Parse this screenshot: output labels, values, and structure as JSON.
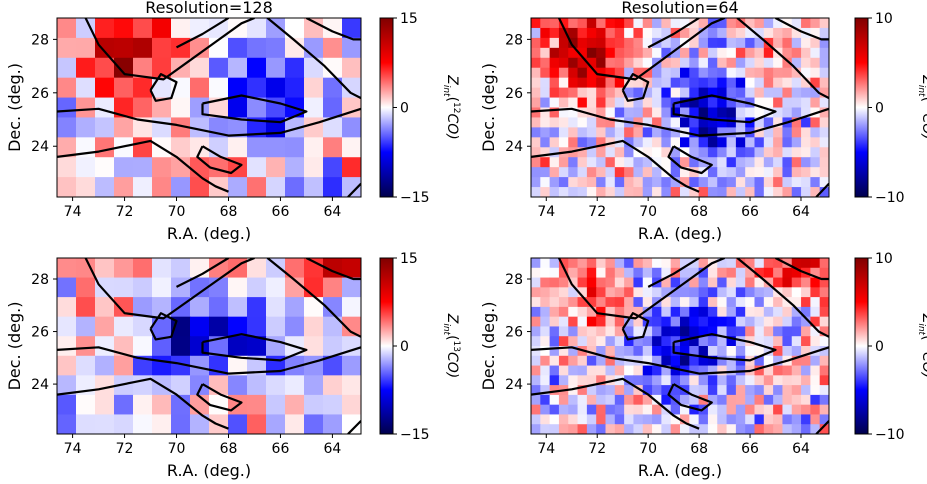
{
  "chart_data": [
    {
      "type": "heatmap",
      "title": "Resolution=128",
      "xlabel": "R.A. (deg.)",
      "ylabel": "Dec. (deg.)",
      "xlim": [
        74.6,
        62.9
      ],
      "ylim": [
        22.1,
        28.8
      ],
      "xticks": [
        "74",
        "72",
        "70",
        "68",
        "66",
        "64"
      ],
      "yticks": [
        "24",
        "26",
        "28"
      ],
      "colorbar": {
        "label_prefix": "Z",
        "label_sub": "int",
        "label_sup": "12",
        "label_suffix": "CO)",
        "label_open": "(",
        "min": -15,
        "max": 15,
        "ticks": [
          "15",
          "0",
          "−15"
        ]
      },
      "grid": [
        16,
        9
      ],
      "seed": 11,
      "hotspots": [
        {
          "x": 72.0,
          "y": 27.3,
          "r": 1.6,
          "amp": 12
        },
        {
          "x": 66.5,
          "y": 25.8,
          "r": 1.8,
          "amp": -9
        },
        {
          "x": 68.5,
          "y": 24.0,
          "r": 1.2,
          "amp": 5
        },
        {
          "x": 70.5,
          "y": 23.0,
          "r": 1.0,
          "amp": 6
        }
      ]
    },
    {
      "type": "heatmap",
      "title": "Resolution=64",
      "xlabel": "R.A. (deg.)",
      "ylabel": "Dec. (deg.)",
      "xlim": [
        74.6,
        62.9
      ],
      "ylim": [
        22.1,
        28.8
      ],
      "xticks": [
        "74",
        "72",
        "70",
        "68",
        "66",
        "64"
      ],
      "yticks": [
        "24",
        "26",
        "28"
      ],
      "colorbar": {
        "label_prefix": "Z",
        "label_sub": "int",
        "label_sup": "12",
        "label_suffix": "CO)",
        "label_open": "(",
        "min": -10,
        "max": 10,
        "ticks": [
          "10",
          "0",
          "−10"
        ]
      },
      "grid": [
        32,
        18
      ],
      "seed": 23,
      "hotspots": [
        {
          "x": 72.5,
          "y": 27.5,
          "r": 1.6,
          "amp": 8
        },
        {
          "x": 67.5,
          "y": 25.2,
          "r": 1.6,
          "amp": -7
        },
        {
          "x": 65.0,
          "y": 27.0,
          "r": 1.2,
          "amp": 3
        }
      ]
    },
    {
      "type": "heatmap",
      "title": "",
      "xlabel": "R.A. (deg.)",
      "ylabel": "Dec. (deg.)",
      "xlim": [
        74.6,
        62.9
      ],
      "ylim": [
        22.1,
        28.8
      ],
      "xticks": [
        "74",
        "72",
        "70",
        "68",
        "66",
        "64"
      ],
      "yticks": [
        "24",
        "26",
        "28"
      ],
      "colorbar": {
        "label_prefix": "Z",
        "label_sub": "int",
        "label_sup": "13",
        "label_suffix": "CO)",
        "label_open": "(",
        "min": -15,
        "max": 15,
        "ticks": [
          "15",
          "0",
          "−15"
        ]
      },
      "grid": [
        16,
        9
      ],
      "seed": 37,
      "hotspots": [
        {
          "x": 69.5,
          "y": 26.0,
          "r": 1.5,
          "amp": -9
        },
        {
          "x": 66.5,
          "y": 25.5,
          "r": 1.5,
          "amp": -7
        },
        {
          "x": 64.0,
          "y": 28.5,
          "r": 1.2,
          "amp": 8
        },
        {
          "x": 73.0,
          "y": 27.0,
          "r": 1.0,
          "amp": 4
        }
      ]
    },
    {
      "type": "heatmap",
      "title": "",
      "xlabel": "R.A. (deg.)",
      "ylabel": "Dec. (deg.)",
      "xlim": [
        74.6,
        62.9
      ],
      "ylim": [
        22.1,
        28.8
      ],
      "xticks": [
        "74",
        "72",
        "70",
        "68",
        "66",
        "64"
      ],
      "yticks": [
        "24",
        "26",
        "28"
      ],
      "colorbar": {
        "label_prefix": "Z",
        "label_sub": "int",
        "label_sup": "13",
        "label_suffix": "CO)",
        "label_open": "(",
        "min": -10,
        "max": 10,
        "ticks": [
          "10",
          "0",
          "−10"
        ]
      },
      "grid": [
        32,
        18
      ],
      "seed": 51,
      "hotspots": [
        {
          "x": 68.5,
          "y": 25.5,
          "r": 1.8,
          "amp": -6
        },
        {
          "x": 64.0,
          "y": 28.5,
          "r": 1.2,
          "amp": 6
        },
        {
          "x": 72.0,
          "y": 27.5,
          "r": 1.2,
          "amp": 3
        }
      ]
    }
  ],
  "contours": [
    [
      [
        74.6,
        25.3
      ],
      [
        73.0,
        25.4
      ],
      [
        71.5,
        25.0
      ],
      [
        70.0,
        24.8
      ],
      [
        68.0,
        24.4
      ],
      [
        66.0,
        24.5
      ],
      [
        64.5,
        24.9
      ],
      [
        62.9,
        25.4
      ]
    ],
    [
      [
        74.6,
        23.6
      ],
      [
        73.0,
        23.8
      ],
      [
        71.0,
        24.2
      ],
      [
        70.0,
        23.6
      ],
      [
        69.0,
        22.8
      ],
      [
        68.5,
        22.5
      ],
      [
        68.0,
        22.3
      ]
    ],
    [
      [
        73.5,
        28.8
      ],
      [
        73.0,
        27.8
      ],
      [
        72.0,
        26.7
      ],
      [
        70.5,
        26.5
      ],
      [
        69.5,
        27.2
      ],
      [
        68.5,
        27.9
      ],
      [
        67.5,
        28.6
      ],
      [
        67.0,
        28.8
      ]
    ],
    [
      [
        71.0,
        26.1
      ],
      [
        70.6,
        26.7
      ],
      [
        70.0,
        26.4
      ],
      [
        70.2,
        25.8
      ],
      [
        70.8,
        25.7
      ],
      [
        71.0,
        26.1
      ]
    ],
    [
      [
        69.0,
        25.6
      ],
      [
        67.5,
        25.9
      ],
      [
        66.0,
        25.6
      ],
      [
        65.0,
        25.3
      ],
      [
        66.0,
        24.9
      ],
      [
        67.5,
        25.0
      ],
      [
        69.0,
        25.2
      ],
      [
        69.0,
        25.6
      ]
    ],
    [
      [
        66.5,
        28.8
      ],
      [
        65.5,
        28.0
      ],
      [
        64.3,
        27.0
      ],
      [
        63.3,
        26.0
      ],
      [
        62.9,
        25.8
      ]
    ],
    [
      [
        65.0,
        28.8
      ],
      [
        64.0,
        28.3
      ],
      [
        63.2,
        28.0
      ],
      [
        62.9,
        28.0
      ]
    ],
    [
      [
        69.0,
        24.0
      ],
      [
        68.3,
        23.6
      ],
      [
        67.5,
        23.3
      ],
      [
        67.9,
        23.0
      ],
      [
        68.7,
        23.2
      ],
      [
        69.2,
        23.6
      ],
      [
        69.0,
        24.0
      ]
    ],
    [
      [
        63.4,
        22.1
      ],
      [
        63.0,
        22.5
      ],
      [
        62.9,
        22.6
      ]
    ],
    [
      [
        70.0,
        27.7
      ],
      [
        69.0,
        28.2
      ],
      [
        68.0,
        28.8
      ]
    ]
  ]
}
